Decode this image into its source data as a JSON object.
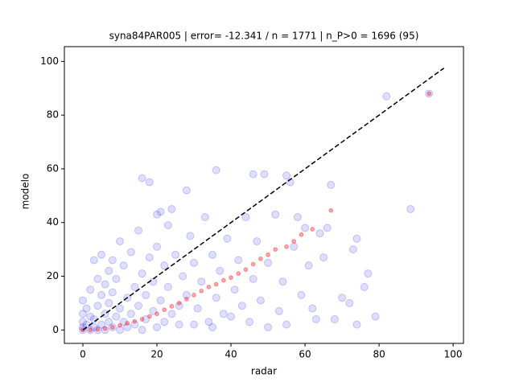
{
  "chart_data": {
    "type": "scatter",
    "title": "syna84PAR005 | error= -12.341 / n = 1771 | n_P>0 = 1696 (95)",
    "xlabel": "radar",
    "ylabel": "modelo",
    "xlim": [
      -5,
      102.8
    ],
    "ylim": [
      -5,
      105.5
    ],
    "xticks": [
      0,
      20,
      40,
      60,
      80,
      100
    ],
    "yticks": [
      0,
      20,
      40,
      60,
      80,
      100
    ],
    "series": [
      {
        "color": "#0000ff",
        "mark": "circle",
        "x": [
          0,
          0,
          0,
          0,
          0,
          1,
          1,
          2,
          2,
          2,
          3,
          3,
          3,
          4,
          4,
          4,
          5,
          5,
          5,
          6,
          6,
          6,
          7,
          7,
          7,
          8,
          8,
          8,
          9,
          9,
          10,
          10,
          10,
          11,
          11,
          12,
          12,
          13,
          13,
          14,
          14,
          15,
          15,
          16,
          16,
          16,
          17,
          17,
          18,
          18,
          19,
          19,
          20,
          20,
          20,
          21,
          21,
          22,
          22,
          23,
          23,
          24,
          24,
          25,
          26,
          26,
          27,
          28,
          28,
          29,
          30,
          30,
          31,
          32,
          33,
          34,
          35,
          35,
          36,
          36,
          37,
          38,
          39,
          40,
          41,
          42,
          43,
          44,
          45,
          46,
          46,
          47,
          48,
          49,
          50,
          50,
          52,
          53,
          54,
          55,
          55,
          56,
          57,
          58,
          59,
          60,
          61,
          62,
          63,
          64,
          65,
          66,
          67,
          68,
          70,
          72,
          73,
          74,
          74,
          76,
          77,
          79,
          82,
          88.5,
          93.5
        ],
        "values": [
          0,
          1,
          3,
          6,
          11,
          2,
          8,
          0,
          5,
          15,
          1,
          4,
          26,
          0,
          9,
          19,
          2,
          13,
          28,
          0,
          6,
          17,
          3,
          10,
          22,
          1,
          14,
          26,
          5,
          19,
          0,
          8,
          33,
          3,
          24,
          12,
          1,
          6,
          29,
          16,
          2,
          9,
          37,
          56.5,
          21,
          0,
          4,
          13,
          55,
          27,
          7,
          18,
          43,
          1,
          31,
          44,
          11,
          24,
          3,
          16,
          39,
          45,
          6,
          28,
          9,
          2,
          20,
          52,
          13,
          35,
          2,
          25,
          8,
          18,
          42,
          3,
          1,
          28,
          59.5,
          12,
          22,
          6,
          34,
          5,
          15,
          26,
          9,
          42,
          3,
          58,
          19,
          33,
          11,
          58,
          1,
          25,
          43,
          7,
          18,
          57.5,
          2,
          55,
          31,
          42,
          13,
          38,
          24,
          8,
          4,
          36,
          27,
          38,
          54,
          4,
          12,
          10,
          30,
          34,
          2,
          16,
          21,
          5,
          87,
          45,
          88
        ]
      },
      {
        "color": "#ff0000",
        "mark": "dot",
        "x": [
          0,
          2,
          4,
          6,
          8,
          10,
          12,
          14,
          16,
          18,
          20,
          22,
          24,
          26,
          28,
          30,
          32,
          34,
          36,
          38,
          40,
          42,
          44,
          46,
          48,
          50,
          52,
          55,
          57,
          59,
          62,
          67,
          93.5
        ],
        "values": [
          0,
          0,
          0.2,
          0.5,
          1,
          1.7,
          2.5,
          3.2,
          4,
          5,
          6,
          7.5,
          8.8,
          10,
          11.5,
          13,
          14.5,
          16,
          17,
          18.5,
          19.5,
          21,
          22.5,
          24.5,
          26.5,
          28,
          30,
          31,
          33,
          35.5,
          37.5,
          44.5,
          88
        ]
      },
      {
        "color": "#000000",
        "mark": "dashed-line",
        "x": [
          0,
          97.5
        ],
        "values": [
          0,
          97.5
        ]
      }
    ]
  }
}
